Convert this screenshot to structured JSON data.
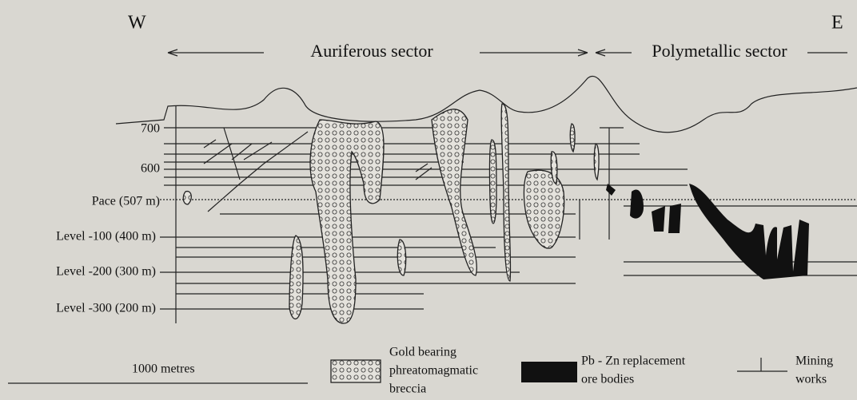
{
  "header": {
    "west": "W",
    "east": "E",
    "sectors": [
      "Auriferous sector",
      "Polymetallic sector"
    ]
  },
  "levels": [
    "700",
    "600",
    "Pace (507 m)",
    "Level -100 (400 m)",
    "Level -200 (300 m)",
    "Level -300 (200 m)"
  ],
  "legend": {
    "scale": "1000 metres",
    "breccia": [
      "Gold bearing",
      "phreatomagmatic",
      "breccia"
    ],
    "ore": [
      "Pb - Zn replacement",
      "ore bodies"
    ],
    "mining": [
      "Mining",
      "works"
    ]
  }
}
